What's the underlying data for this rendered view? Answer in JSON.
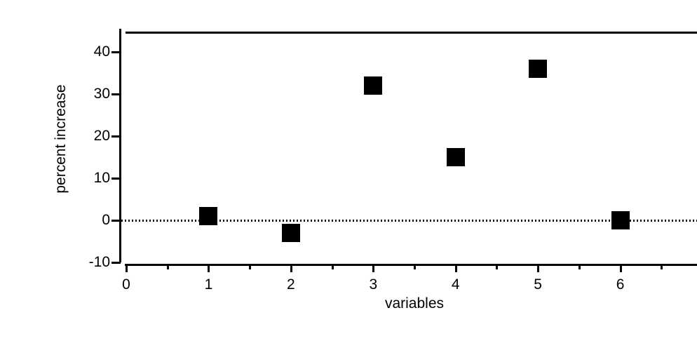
{
  "chart_data": {
    "type": "scatter",
    "title": "",
    "xlabel": "variables",
    "ylabel": "percent increase",
    "points": [
      {
        "x": 1,
        "y": 1
      },
      {
        "x": 2,
        "y": -3
      },
      {
        "x": 3,
        "y": 32
      },
      {
        "x": 4,
        "y": 15
      },
      {
        "x": 5,
        "y": 36
      },
      {
        "x": 6,
        "y": 0
      }
    ],
    "xlim": [
      0,
      7
    ],
    "ylim": [
      -10,
      45
    ],
    "x_major_ticks": [
      0,
      1,
      2,
      3,
      4,
      5,
      6,
      7
    ],
    "x_minor_ticks": [
      0.5,
      1.5,
      2.5,
      3.5,
      4.5,
      5.5,
      6.5
    ],
    "y_ticks": [
      -10,
      0,
      10,
      20,
      30,
      40
    ],
    "reference_line_y": 0,
    "marker": "filled-square",
    "marker_color": "#000000",
    "axis_color": "#000000",
    "background_color": "#ffffff",
    "grid": false,
    "legend": "none"
  }
}
